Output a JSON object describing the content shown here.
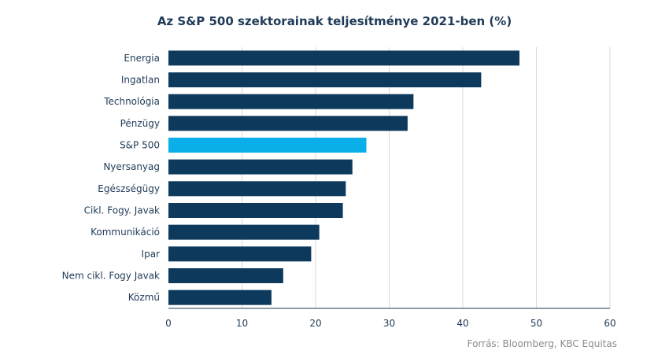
{
  "title": "Az S&P 500 szektorainak teljesítménye 2021-ben (%)",
  "source": "Forrás: Bloomberg, KBC Equitas",
  "colors": {
    "bar": "#0d3a5c",
    "highlight": "#0aaee8",
    "grid": "#d9d9d9",
    "axis": "#1f3b57"
  },
  "chart_data": {
    "type": "bar",
    "orientation": "horizontal",
    "title": "Az S&P 500 szektorainak teljesítménye 2021-ben (%)",
    "categories": [
      "Energia",
      "Ingatlan",
      "Technológia",
      "Pénzügy",
      "S&P 500",
      "Nyersanyag",
      "Egészségügy",
      "Cikl. Fogy. Javak",
      "Kommunikáció",
      "Ipar",
      "Nem cikl. Fogy Javak",
      "Közmű"
    ],
    "values": [
      47.7,
      42.5,
      33.3,
      32.5,
      26.9,
      25.0,
      24.1,
      23.7,
      20.5,
      19.4,
      15.6,
      14.0
    ],
    "highlight": "S&P 500",
    "xlim": [
      0,
      60
    ],
    "xticks": [
      0,
      10,
      20,
      30,
      40,
      50,
      60
    ],
    "grid": true,
    "legend": "none"
  }
}
